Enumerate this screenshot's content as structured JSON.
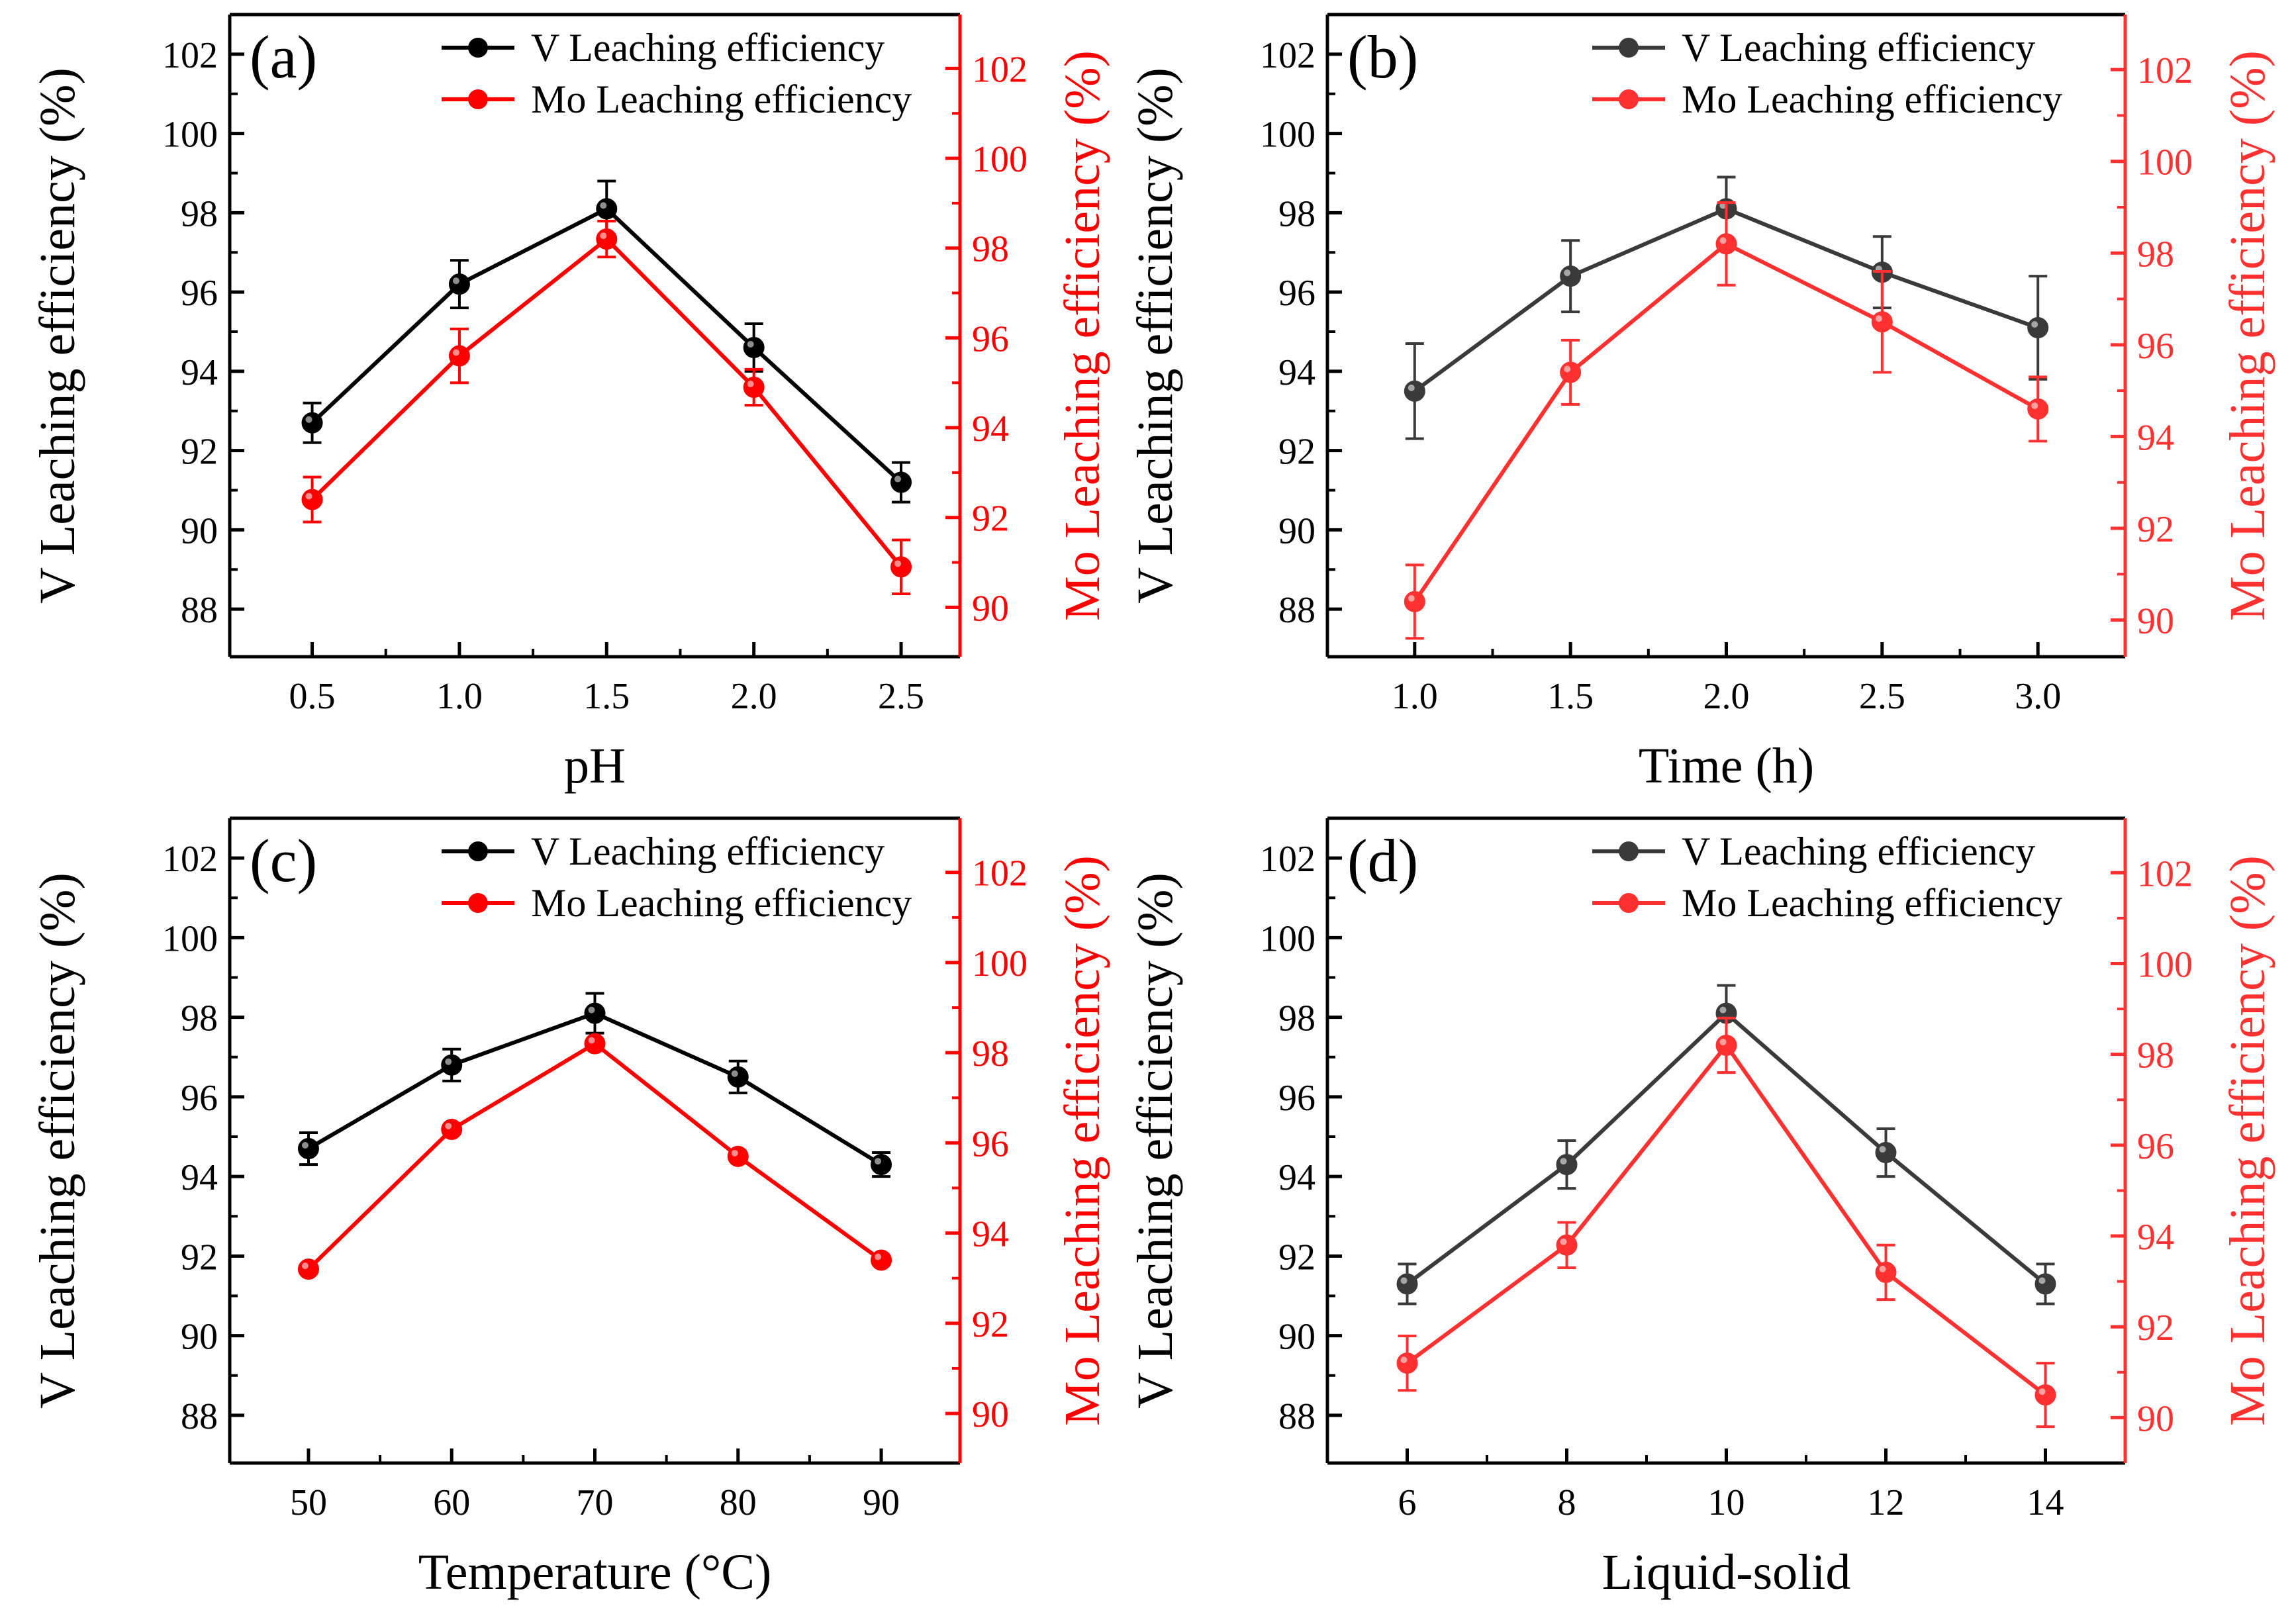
{
  "colors": {
    "v_main": "#000000",
    "v_gray": "#3a3a3a",
    "mo_main": "#ff0000",
    "mo_light": "#ff3030"
  },
  "chart_data": [
    {
      "type": "line",
      "panel_label": "(a)",
      "xlabel": "pH",
      "ylabel_left": "V Leaching efficiency (%)",
      "ylabel_right": "Mo Leaching efficiency (%)",
      "x": [
        0.5,
        1.0,
        1.5,
        2.0,
        2.5
      ],
      "x_ticks": [
        "0.5",
        "1.0",
        "1.5",
        "2.0",
        "2.5"
      ],
      "xlim": [
        0.22,
        2.7
      ],
      "ylim_left": [
        86.8,
        103
      ],
      "ylim_right": [
        88.9,
        103.2
      ],
      "yticks_left": [
        88,
        90,
        92,
        94,
        96,
        98,
        100,
        102
      ],
      "yticks_right": [
        90,
        92,
        94,
        96,
        98,
        100,
        102
      ],
      "legend_position": "top-right",
      "series": [
        {
          "name": "V Leaching efficiency",
          "axis": "left",
          "color": "#000000",
          "values": [
            92.7,
            96.2,
            98.1,
            94.6,
            91.2
          ],
          "errors": [
            0.5,
            0.6,
            0.7,
            0.6,
            0.5
          ]
        },
        {
          "name": "Mo Leaching efficiency",
          "axis": "right",
          "color": "#ff0000",
          "values": [
            92.4,
            95.6,
            98.2,
            94.9,
            90.9
          ],
          "errors": [
            0.5,
            0.6,
            0.4,
            0.4,
            0.6
          ]
        }
      ]
    },
    {
      "type": "line",
      "panel_label": "(b)",
      "xlabel": "Time (h)",
      "ylabel_left": "V Leaching efficiency (%)",
      "ylabel_right": "Mo Leaching efficiency (%)",
      "x": [
        1.0,
        1.5,
        2.0,
        2.5,
        3.0
      ],
      "x_ticks": [
        "1.0",
        "1.5",
        "2.0",
        "2.5",
        "3.0"
      ],
      "xlim": [
        0.72,
        3.28
      ],
      "ylim_left": [
        86.8,
        103
      ],
      "ylim_right": [
        89.2,
        103.2
      ],
      "yticks_left": [
        88,
        90,
        92,
        94,
        96,
        98,
        100,
        102
      ],
      "yticks_right": [
        90,
        92,
        94,
        96,
        98,
        100,
        102
      ],
      "legend_position": "top-right",
      "series": [
        {
          "name": "V Leaching efficiency",
          "axis": "left",
          "color": "#3a3a3a",
          "values": [
            93.5,
            96.4,
            98.1,
            96.5,
            95.1
          ],
          "errors": [
            1.2,
            0.9,
            0.8,
            0.9,
            1.3
          ]
        },
        {
          "name": "Mo Leaching efficiency",
          "axis": "right",
          "color": "#ff3030",
          "values": [
            90.4,
            95.4,
            98.2,
            96.5,
            94.6
          ],
          "errors": [
            0.8,
            0.7,
            0.9,
            1.1,
            0.7
          ]
        }
      ]
    },
    {
      "type": "line",
      "panel_label": "(c)",
      "xlabel": "Temperature (°C)",
      "ylabel_left": "V Leaching efficiency (%)",
      "ylabel_right": "Mo Leaching efficiency (%)",
      "x": [
        50,
        60,
        70,
        80,
        90
      ],
      "x_ticks": [
        "50",
        "60",
        "70",
        "80",
        "90"
      ],
      "xlim": [
        44.5,
        95.5
      ],
      "ylim_left": [
        86.8,
        103
      ],
      "ylim_right": [
        88.9,
        103.2
      ],
      "yticks_left": [
        88,
        90,
        92,
        94,
        96,
        98,
        100,
        102
      ],
      "yticks_right": [
        90,
        92,
        94,
        96,
        98,
        100,
        102
      ],
      "legend_position": "top-right",
      "series": [
        {
          "name": "V Leaching efficiency",
          "axis": "left",
          "color": "#000000",
          "values": [
            94.7,
            96.8,
            98.1,
            96.5,
            94.3
          ],
          "errors": [
            0.4,
            0.4,
            0.5,
            0.4,
            0.3
          ]
        },
        {
          "name": "Mo Leaching efficiency",
          "axis": "right",
          "color": "#ff0000",
          "values": [
            93.2,
            96.3,
            98.2,
            95.7,
            93.4
          ],
          "errors": [
            0.0,
            0.0,
            0.0,
            0.0,
            0.0
          ]
        }
      ]
    },
    {
      "type": "line",
      "panel_label": "(d)",
      "xlabel": "Liquid-solid",
      "ylabel_left": "V Leaching efficiency (%)",
      "ylabel_right": "Mo Leaching efficiency (%)",
      "x": [
        6,
        8,
        10,
        12,
        14
      ],
      "x_ticks": [
        "6",
        "8",
        "10",
        "12",
        "14"
      ],
      "xlim": [
        5.0,
        15.0
      ],
      "ylim_left": [
        86.8,
        103
      ],
      "ylim_right": [
        89.0,
        103.2
      ],
      "yticks_left": [
        88,
        90,
        92,
        94,
        96,
        98,
        100,
        102
      ],
      "yticks_right": [
        90,
        92,
        94,
        96,
        98,
        100,
        102
      ],
      "legend_position": "top-right",
      "series": [
        {
          "name": "V Leaching efficiency",
          "axis": "left",
          "color": "#3a3a3a",
          "values": [
            91.3,
            94.3,
            98.1,
            94.6,
            91.3
          ],
          "errors": [
            0.5,
            0.6,
            0.7,
            0.6,
            0.5
          ]
        },
        {
          "name": "Mo Leaching efficiency",
          "axis": "right",
          "color": "#ff3030",
          "values": [
            91.2,
            93.8,
            98.2,
            93.2,
            90.5
          ],
          "errors": [
            0.6,
            0.5,
            0.6,
            0.6,
            0.7
          ]
        }
      ]
    }
  ]
}
